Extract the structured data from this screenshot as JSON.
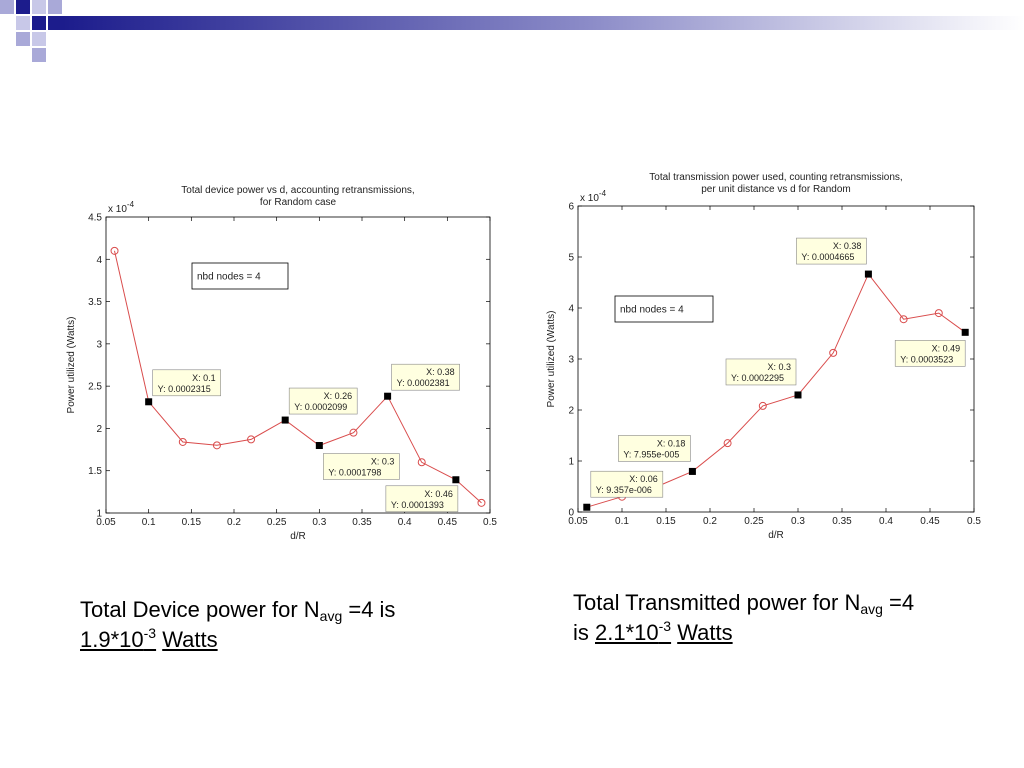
{
  "colors": {
    "series": "#d94c4c",
    "marker_fill": "#000000",
    "datatip_bg": "#ffffe0",
    "deco_dark": "#1c1c8c",
    "deco_light": "#a9a9d8"
  },
  "captions": {
    "left": {
      "line1_prefix": "Total Device power for N",
      "sub": "avg",
      "line1_suffix": " =4 is",
      "value_base": "1.9*10",
      "value_exp": "-3",
      "unit": "Watts"
    },
    "right": {
      "line1_prefix": "Total Transmitted power for N",
      "sub": "avg",
      "line1_suffix": " =4",
      "line2_prefix": "is ",
      "value_base": "2.1*10",
      "value_exp": "-3",
      "unit": "Watts"
    }
  },
  "chart_data": [
    {
      "type": "line",
      "title_lines": [
        "Total device power vs d, accounting retransmissions,",
        "for Random case"
      ],
      "xlabel": "d/R",
      "ylabel": "Power utilized (Watts)",
      "y_multiplier": "x 10",
      "y_multiplier_exp": "-4",
      "xlim": [
        0.05,
        0.5
      ],
      "ylim": [
        1,
        4.5
      ],
      "xticks": [
        "0.05",
        "0.1",
        "0.15",
        "0.2",
        "0.25",
        "0.3",
        "0.35",
        "0.4",
        "0.45",
        "0.5"
      ],
      "yticks": [
        "1",
        "1.5",
        "2",
        "2.5",
        "3",
        "3.5",
        "4",
        "4.5"
      ],
      "x": [
        0.06,
        0.1,
        0.14,
        0.18,
        0.22,
        0.26,
        0.3,
        0.34,
        0.38,
        0.42,
        0.46,
        0.49
      ],
      "y": [
        4.1,
        2.315,
        1.84,
        1.8,
        1.87,
        2.099,
        1.798,
        1.95,
        2.381,
        1.6,
        1.393,
        1.12
      ],
      "annotation": "nbd nodes = 4",
      "annotation_pos": "upper-middle",
      "datatips": [
        {
          "x": 0.1,
          "y": 2.315,
          "line1": "X: 0.1",
          "line2": "Y: 0.0002315"
        },
        {
          "x": 0.26,
          "y": 2.099,
          "line1": "X: 0.26",
          "line2": "Y: 0.0002099"
        },
        {
          "x": 0.3,
          "y": 1.798,
          "line1": "X: 0.3",
          "line2": "Y: 0.0001798"
        },
        {
          "x": 0.38,
          "y": 2.381,
          "line1": "X: 0.38",
          "line2": "Y: 0.0002381"
        },
        {
          "x": 0.46,
          "y": 1.393,
          "line1": "X: 0.46",
          "line2": "Y: 0.0001393"
        }
      ]
    },
    {
      "type": "line",
      "title_lines": [
        "Total transmission power used, counting retransmissions,",
        "per unit distance vs d for Random"
      ],
      "xlabel": "d/R",
      "ylabel": "Power utilized (Watts)",
      "y_multiplier": "x 10",
      "y_multiplier_exp": "-4",
      "xlim": [
        0.05,
        0.5
      ],
      "ylim": [
        0,
        6
      ],
      "xticks": [
        "0.05",
        "0.1",
        "0.15",
        "0.2",
        "0.25",
        "0.3",
        "0.35",
        "0.4",
        "0.45",
        "0.5"
      ],
      "yticks": [
        "0",
        "1",
        "2",
        "3",
        "4",
        "5",
        "6"
      ],
      "x": [
        0.06,
        0.1,
        0.14,
        0.18,
        0.22,
        0.26,
        0.3,
        0.34,
        0.38,
        0.42,
        0.46,
        0.49
      ],
      "y": [
        0.09357,
        0.3,
        0.5,
        0.7955,
        1.35,
        2.08,
        2.295,
        3.12,
        4.665,
        3.78,
        3.9,
        3.523
      ],
      "annotation": "nbd nodes = 4",
      "annotation_pos": "upper-left",
      "datatips": [
        {
          "x": 0.06,
          "y": 0.09357,
          "line1": "X: 0.06",
          "line2": "Y: 9.357e-006"
        },
        {
          "x": 0.18,
          "y": 0.7955,
          "line1": "X: 0.18",
          "line2": "Y: 7.955e-005"
        },
        {
          "x": 0.3,
          "y": 2.295,
          "line1": "X: 0.3",
          "line2": "Y: 0.0002295"
        },
        {
          "x": 0.38,
          "y": 4.665,
          "line1": "X: 0.38",
          "line2": "Y: 0.0004665"
        },
        {
          "x": 0.49,
          "y": 3.523,
          "line1": "X: 0.49",
          "line2": "Y: 0.0003523"
        }
      ]
    }
  ]
}
